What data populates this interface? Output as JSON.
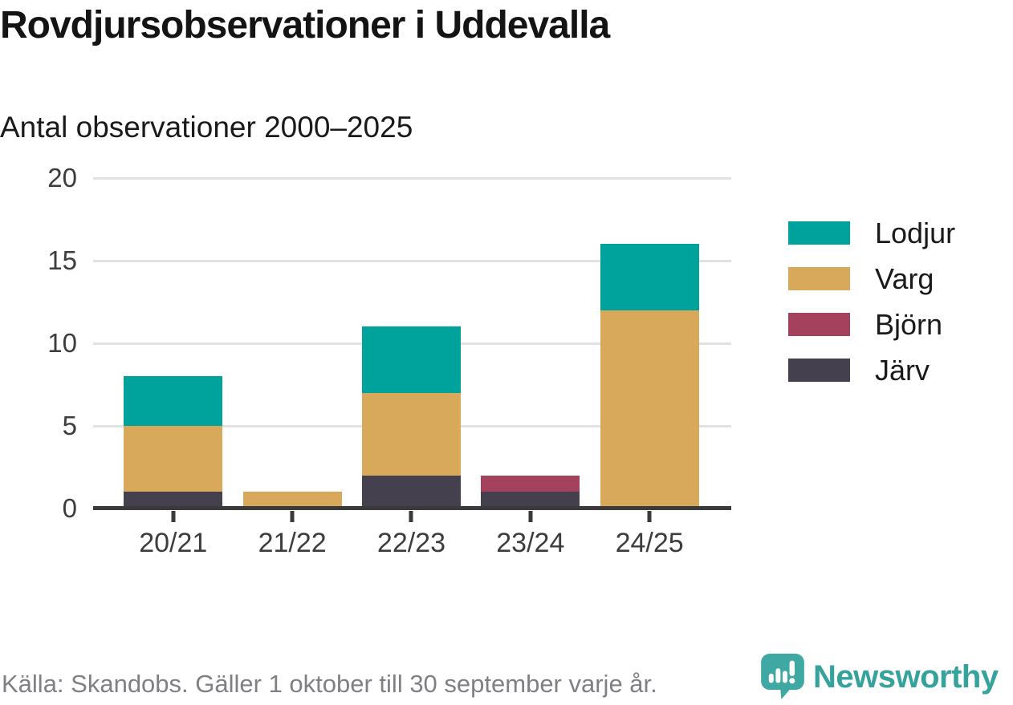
{
  "header": {
    "title": "Rovdjursobservationer i Uddevalla",
    "subtitle": "Antal observationer 2000–2025"
  },
  "chart_data": {
    "type": "bar",
    "stacked": true,
    "title": "Rovdjursobservationer i Uddevalla",
    "subtitle": "Antal observationer 2000–2025",
    "categories": [
      "20/21",
      "21/22",
      "22/23",
      "23/24",
      "24/25"
    ],
    "series": [
      {
        "name": "Lodjur",
        "color": "#00a39b",
        "values": [
          3,
          0,
          4,
          0,
          4
        ]
      },
      {
        "name": "Varg",
        "color": "#d8a95a",
        "values": [
          4,
          1,
          5,
          0,
          12
        ]
      },
      {
        "name": "Björn",
        "color": "#a4415c",
        "values": [
          0,
          0,
          0,
          1,
          0
        ]
      },
      {
        "name": "Järv",
        "color": "#44404e",
        "values": [
          1,
          0,
          2,
          1,
          0
        ]
      }
    ],
    "stack_order_bottom_to_top": [
      "Järv",
      "Björn",
      "Varg",
      "Lodjur"
    ],
    "totals": [
      8,
      1,
      11,
      2,
      16
    ],
    "ylim": [
      0,
      20
    ],
    "yticks": [
      0,
      5,
      10,
      15,
      20
    ],
    "xlabel": "",
    "ylabel": "",
    "grid": true,
    "legend_position": "right",
    "legend_order": [
      "Lodjur",
      "Varg",
      "Björn",
      "Järv"
    ]
  },
  "footer": {
    "source": "Källa: Skandobs. Gäller 1 oktober till 30 september varje år.",
    "brand": "Newsworthy"
  },
  "colors": {
    "lodjur": "#00a39b",
    "varg": "#d8a95a",
    "bjorn": "#a4415c",
    "jarv": "#44404e",
    "axis": "#3a3a3a",
    "gridline": "#e2e2e2",
    "brand_teal": "#35a29c",
    "footer_gray": "#808084"
  }
}
